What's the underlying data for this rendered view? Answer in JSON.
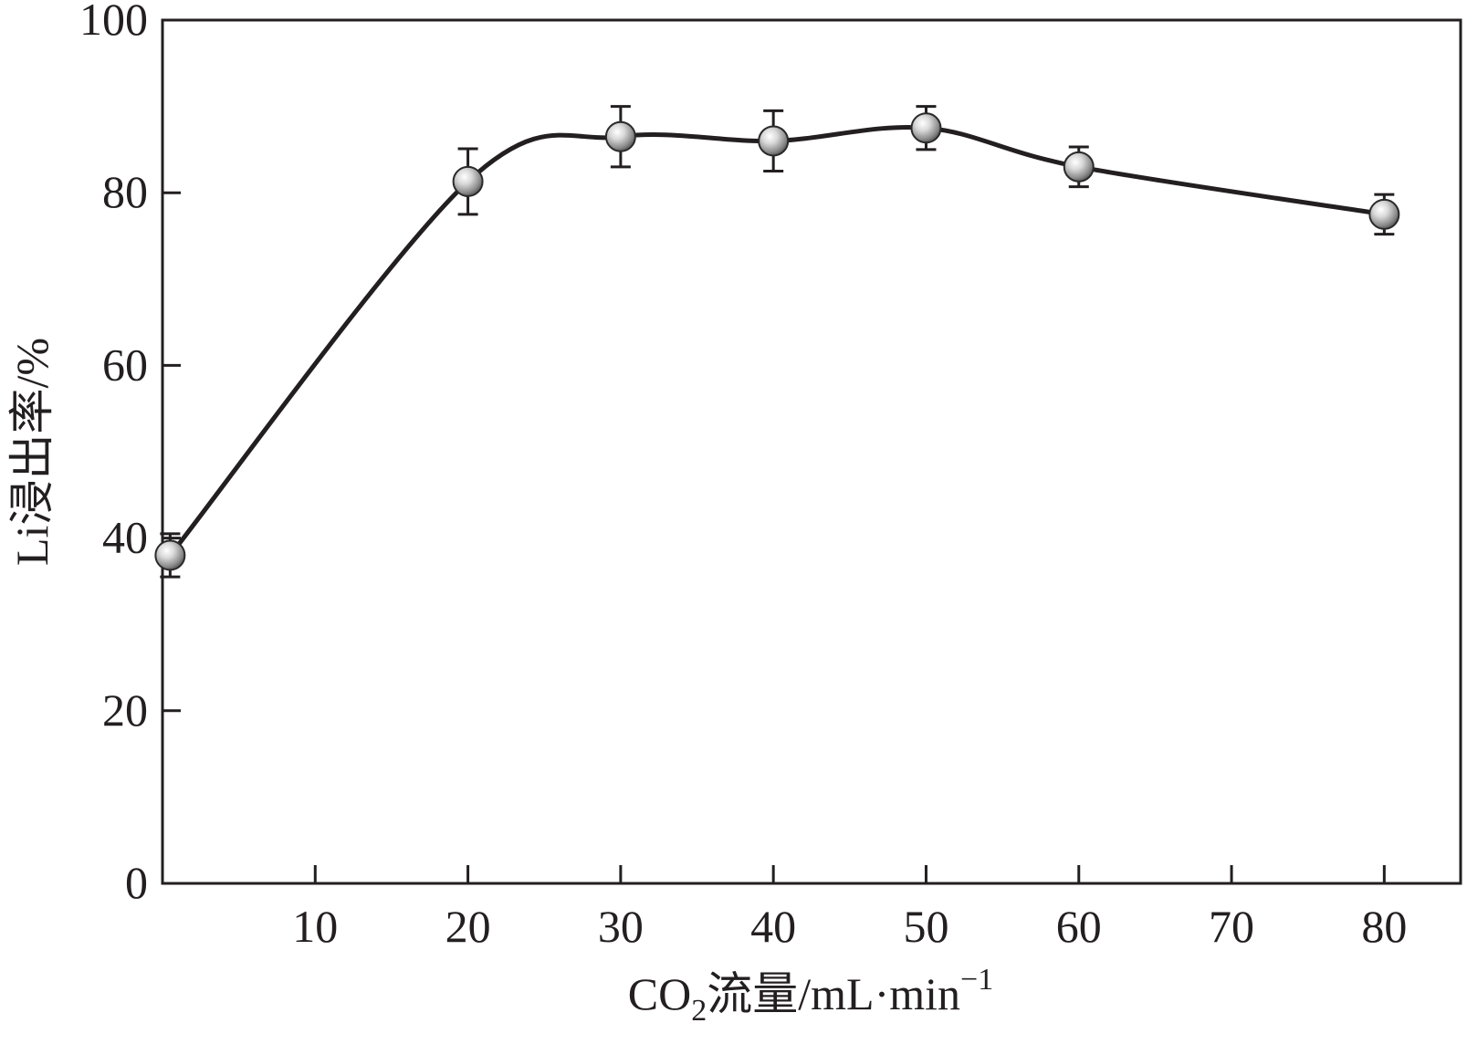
{
  "chart_data": {
    "type": "scatter",
    "title": "",
    "xlabel": {
      "prefix": "CO",
      "subscript": "2",
      "main": "流量/mL·min",
      "superscript": "−1"
    },
    "ylabel": "Li浸出率/%",
    "xlim": [
      0,
      85
    ],
    "ylim": [
      0,
      100
    ],
    "x_ticks": [
      10,
      20,
      30,
      40,
      50,
      60,
      70,
      80
    ],
    "y_ticks": [
      0,
      20,
      40,
      60,
      80,
      100
    ],
    "grid": false,
    "legend": false,
    "series": [
      {
        "x": [
          0.5,
          20,
          30,
          40,
          50,
          60,
          80
        ],
        "y": [
          38,
          81.3,
          86.5,
          86,
          87.5,
          83,
          77.5
        ],
        "error": [
          2.5,
          3.8,
          3.5,
          3.5,
          2.5,
          2.3,
          2.3
        ],
        "marker": "sphere",
        "smooth_line": true
      }
    ],
    "colors": {
      "axis": "#231f20",
      "line": "#231f20",
      "marker": "#9a9a9a"
    }
  }
}
